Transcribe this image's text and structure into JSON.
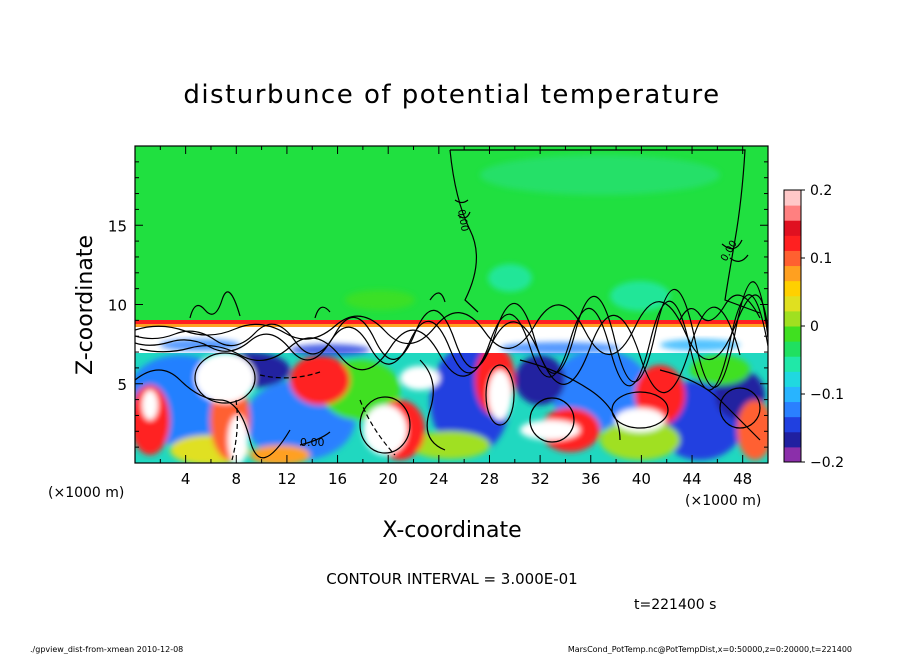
{
  "chart_data": {
    "type": "heatmap",
    "title": "disturbunce of potential temperature",
    "xlabel": "X-coordinate",
    "ylabel": "Z-coordinate",
    "x_unit_left": "(×1000 m)",
    "x_unit_right": "(×1000 m)",
    "xlim": [
      0,
      50
    ],
    "ylim": [
      0,
      20
    ],
    "x_ticks": [
      "4",
      "8",
      "12",
      "16",
      "20",
      "24",
      "28",
      "32",
      "36",
      "40",
      "44",
      "48"
    ],
    "y_ticks": [
      "5",
      "10",
      "15"
    ],
    "colorbar": {
      "range": [
        -0.2,
        0.2
      ],
      "tick_labels": [
        "0.2",
        "0.1",
        "0",
        "−0.1",
        "−0.2"
      ],
      "colors": [
        "#8b2faa",
        "#2020a0",
        "#2040e0",
        "#2a80ff",
        "#28b4ff",
        "#20d8e0",
        "#20e8a8",
        "#20e060",
        "#40e020",
        "#a0e020",
        "#e0e020",
        "#ffd000",
        "#ffa020",
        "#ff6030",
        "#ff2020",
        "#e01020",
        "#ff8080",
        "#ffc8c8"
      ]
    },
    "contour_interval": "CONTOUR INTERVAL = 3.000E-01",
    "contour_labels": [
      "0.00",
      "0.00",
      "0.00"
    ],
    "time_label": "t=221400 s"
  },
  "footer": {
    "left": "./gpview_dist-from-xmean   2010-12-08",
    "right": "MarsCond_PotTemp.nc@PotTempDist,x=0:50000,z=0:20000,t=221400"
  }
}
